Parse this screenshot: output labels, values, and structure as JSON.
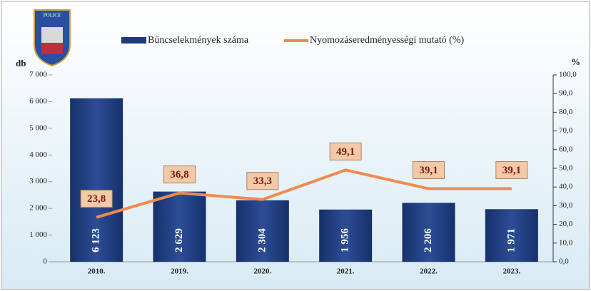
{
  "chart_data": {
    "type": "bar-line",
    "logo": "POLICE",
    "y_label": "db",
    "y2_label": "%",
    "categories": [
      "2010.",
      "2019.",
      "2020.",
      "2021.",
      "2022.",
      "2023."
    ],
    "series": [
      {
        "name": "Bűncselekmények száma",
        "color": "#1f3a7a",
        "type": "bar",
        "values": [
          6123,
          2629,
          2304,
          1956,
          2206,
          1971
        ],
        "value_labels": [
          "6 123",
          "2 629",
          "2 304",
          "1 956",
          "2 206",
          "1 971"
        ]
      },
      {
        "name": "Nyomozáseredményességi mutató (%)",
        "color": "#f08a50",
        "type": "line",
        "axis": "y2",
        "values": [
          23.8,
          36.8,
          33.3,
          49.1,
          39.1,
          39.1
        ],
        "value_labels": [
          "23,8",
          "36,8",
          "33,3",
          "49,1",
          "39,1",
          "39,1"
        ]
      }
    ],
    "ylim": [
      0,
      7000
    ],
    "yticks": [
      0,
      {
        "value": 1000,
        "label": "1 000"
      },
      {
        "value": 2000,
        "label": "2 000"
      },
      {
        "value": 3000,
        "label": "3 000"
      },
      {
        "value": 4000,
        "label": "4 000"
      },
      {
        "value": 5000,
        "label": "5 000"
      },
      {
        "value": 6000,
        "label": "6 000"
      },
      {
        "value": 7000,
        "label": "7 000"
      }
    ],
    "y2lim": [
      0,
      100
    ],
    "y2ticks": [
      {
        "value": 0,
        "label": "0,0"
      },
      {
        "value": 10,
        "label": "10,0"
      },
      {
        "value": 20,
        "label": "20,0"
      },
      {
        "value": 30,
        "label": "30,0"
      },
      {
        "value": 40,
        "label": "40,0"
      },
      {
        "value": 50,
        "label": "50,0"
      },
      {
        "value": 60,
        "label": "60,0"
      },
      {
        "value": 70,
        "label": "70,0"
      },
      {
        "value": 80,
        "label": "80,0"
      },
      {
        "value": 90,
        "label": "90,0"
      },
      {
        "value": 100,
        "label": "100,0"
      }
    ]
  }
}
